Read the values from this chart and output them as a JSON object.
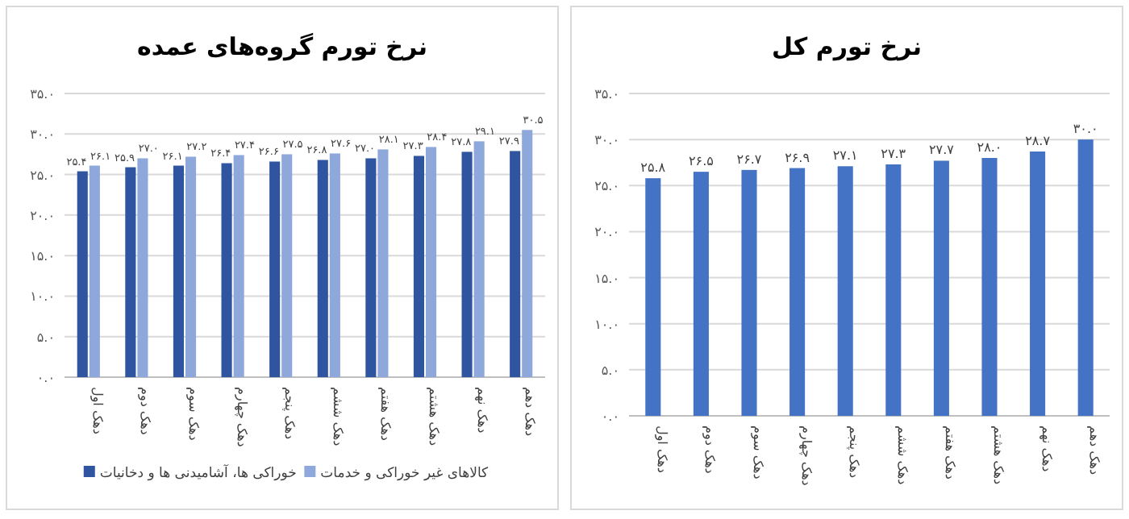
{
  "chart_data": [
    {
      "type": "bar",
      "title": "نرخ تورم گروه‌های عمده",
      "categories": [
        "دهک اول",
        "دهک دوم",
        "دهک سوم",
        "دهک چهارم",
        "دهک پنجم",
        "دهک ششم",
        "دهک هفتم",
        "دهک هشتم",
        "دهک نهم",
        "دهک دهم"
      ],
      "series": [
        {
          "name": "خوراکی ها، آشامیدنی ها و دخانیات",
          "color": "#2f55a1",
          "values": [
            25.4,
            25.9,
            26.1,
            26.4,
            26.6,
            26.8,
            27.0,
            27.3,
            27.8,
            27.9
          ],
          "value_labels": [
            "۲۵.۴",
            "۲۵.۹",
            "۲۶.۱",
            "۲۶.۴",
            "۲۶.۶",
            "۲۶.۸",
            "۲۷.۰",
            "۲۷.۳",
            "۲۷.۸",
            "۲۷.۹"
          ]
        },
        {
          "name": "کالاهای غیر خوراکی و خدمات",
          "color": "#8fa8dc",
          "values": [
            26.1,
            27.0,
            27.2,
            27.4,
            27.5,
            27.6,
            28.1,
            28.4,
            29.1,
            30.5
          ],
          "value_labels": [
            "۲۶.۱",
            "۲۷.۰",
            "۲۷.۲",
            "۲۷.۴",
            "۲۷.۵",
            "۲۷.۶",
            "۲۸.۱",
            "۲۸.۴",
            "۲۹.۱",
            "۳۰.۵"
          ]
        }
      ],
      "ylim": [
        0,
        35
      ],
      "yticks": [
        {
          "value": 0,
          "label": "۰.۰"
        },
        {
          "value": 5,
          "label": "۵.۰"
        },
        {
          "value": 10,
          "label": "۱۰.۰"
        },
        {
          "value": 15,
          "label": "۱۵.۰"
        },
        {
          "value": 20,
          "label": "۲۰.۰"
        },
        {
          "value": 25,
          "label": "۲۵.۰"
        },
        {
          "value": 30,
          "label": "۳۰.۰"
        },
        {
          "value": 35,
          "label": "۳۵.۰"
        }
      ],
      "grid": "y",
      "legend": "bottom"
    },
    {
      "type": "bar",
      "title": "نرخ تورم کل",
      "categories": [
        "دهک اول",
        "دهک دوم",
        "دهک سوم",
        "دهک چهارم",
        "دهک پنجم",
        "دهک ششم",
        "دهک هفتم",
        "دهک هشتم",
        "دهک نهم",
        "دهک دهم"
      ],
      "series": [
        {
          "color": "#4472c4",
          "values": [
            25.8,
            26.5,
            26.7,
            26.9,
            27.1,
            27.3,
            27.7,
            28.0,
            28.7,
            30.0
          ],
          "value_labels": [
            "۲۵.۸",
            "۲۶.۵",
            "۲۶.۷",
            "۲۶.۹",
            "۲۷.۱",
            "۲۷.۳",
            "۲۷.۷",
            "۲۸.۰",
            "۲۸.۷",
            "۳۰.۰"
          ]
        }
      ],
      "ylim": [
        0,
        35
      ],
      "yticks": [
        {
          "value": 0,
          "label": "۰.۰"
        },
        {
          "value": 5,
          "label": "۵.۰"
        },
        {
          "value": 10,
          "label": "۱۰.۰"
        },
        {
          "value": 15,
          "label": "۱۵.۰"
        },
        {
          "value": 20,
          "label": "۲۰.۰"
        },
        {
          "value": 25,
          "label": "۲۵.۰"
        },
        {
          "value": 30,
          "label": "۳۰.۰"
        },
        {
          "value": 35,
          "label": "۳۵.۰"
        }
      ],
      "grid": "y"
    }
  ]
}
